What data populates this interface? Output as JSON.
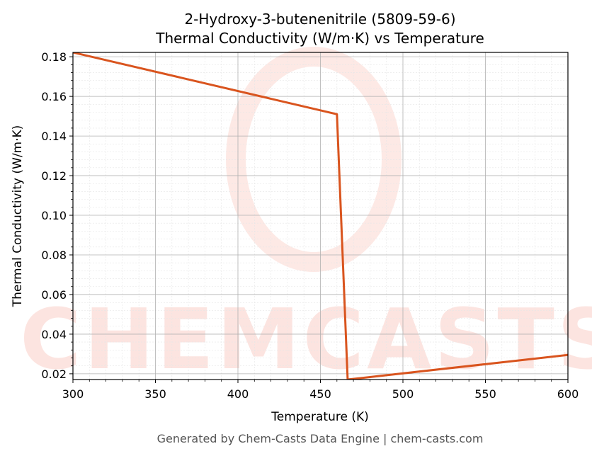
{
  "chart_data": {
    "type": "line",
    "title": "2-Hydroxy-3-butenenitrile (5809-59-6)",
    "subtitle": "Thermal Conductivity (W/m·K) vs Temperature",
    "x_label": "Temperature (K)",
    "y_label": "Thermal Conductivity (W/m·K)",
    "watermark": "CHEMCASTS",
    "footer": "Generated by Chem-Casts Data Engine | chem-casts.com",
    "x": [
      300,
      460,
      466.5,
      600
    ],
    "series": [
      {
        "name": "Thermal Conductivity",
        "color": "#d9541e",
        "values": [
          0.1822,
          0.151,
          0.0171,
          0.0295
        ]
      }
    ],
    "xlim": [
      300,
      600
    ],
    "xticks": [
      300,
      350,
      400,
      450,
      500,
      550,
      600
    ],
    "ylim": [
      0.0171,
      0.1822
    ],
    "yticks": [
      0.02,
      0.04,
      0.06,
      0.08,
      {
        "value": 0.1,
        "label": "0.10"
      },
      0.12,
      0.14,
      0.16,
      0.18
    ],
    "grid": true
  }
}
